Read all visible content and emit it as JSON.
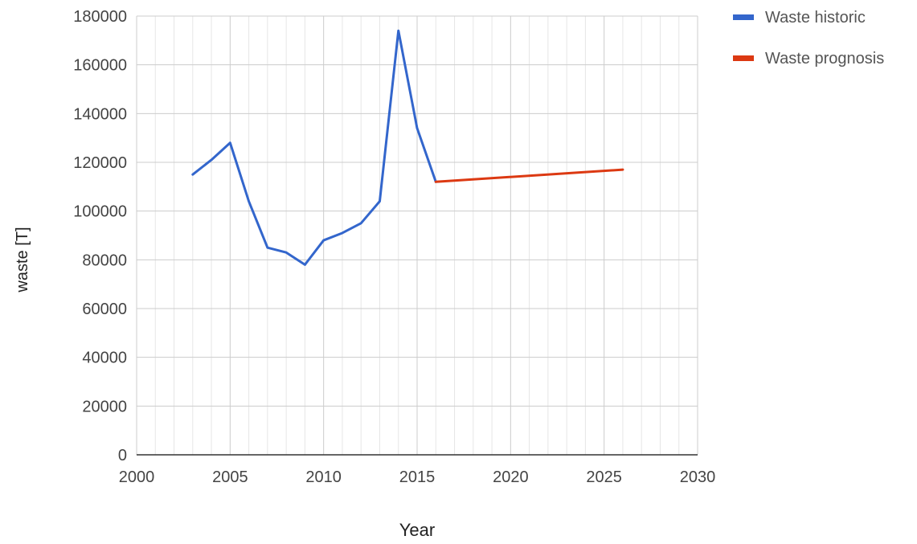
{
  "chart_data": {
    "type": "line",
    "title": "",
    "xlabel": "Year",
    "ylabel": "waste [T]",
    "xlim": [
      2000,
      2030
    ],
    "ylim": [
      0,
      180000
    ],
    "x_ticks": [
      2000,
      2005,
      2010,
      2015,
      2020,
      2025,
      2030
    ],
    "y_ticks": [
      0,
      20000,
      40000,
      60000,
      80000,
      100000,
      120000,
      140000,
      160000,
      180000
    ],
    "grid": true,
    "legend_position": "right",
    "series": [
      {
        "name": "Waste historic",
        "color": "#3366cc",
        "x": [
          2003,
          2004,
          2005,
          2006,
          2007,
          2008,
          2009,
          2010,
          2011,
          2012,
          2013,
          2014,
          2015,
          2016
        ],
        "y": [
          115000,
          121000,
          128000,
          104000,
          85000,
          83000,
          78000,
          88000,
          91000,
          95000,
          104000,
          174000,
          134000,
          112000
        ]
      },
      {
        "name": "Waste prognosis",
        "color": "#dc3912",
        "x": [
          2016,
          2026
        ],
        "y": [
          112000,
          117000
        ]
      }
    ]
  }
}
